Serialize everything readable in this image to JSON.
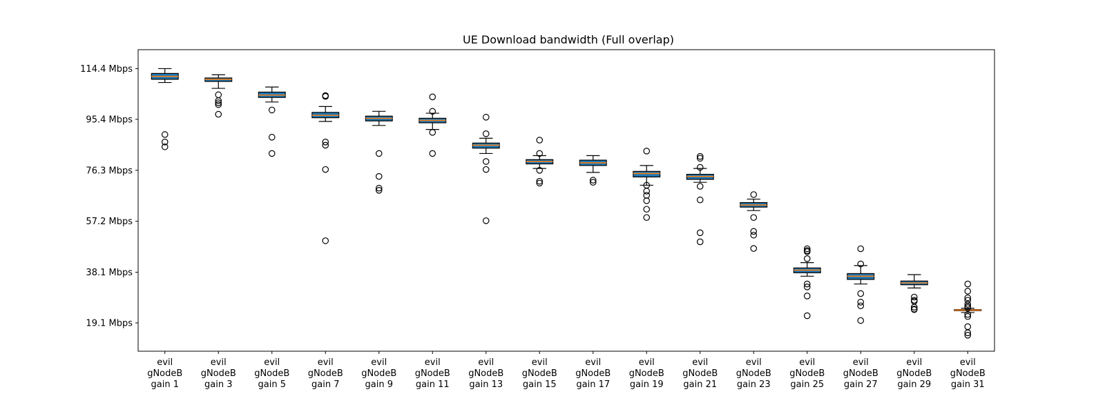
{
  "chart_data": {
    "type": "box",
    "title": "UE Download bandwidth (Full overlap)",
    "xlabel": "",
    "ylabel": "",
    "ylim": [
      8.5,
      121.5
    ],
    "yticks": [
      19.1,
      38.1,
      57.2,
      76.3,
      95.4,
      114.4
    ],
    "ytick_labels": [
      "19.1 Mbps",
      "38.1 Mbps",
      "57.2 Mbps",
      "76.3 Mbps",
      "95.4 Mbps",
      "114.4 Mbps"
    ],
    "grid": false,
    "box_color": "#1f77b4",
    "median_color": "#ff7f0e",
    "categories": [
      [
        "evil",
        "gNodeB",
        "gain 1"
      ],
      [
        "evil",
        "gNodeB",
        "gain 3"
      ],
      [
        "evil",
        "gNodeB",
        "gain 5"
      ],
      [
        "evil",
        "gNodeB",
        "gain 7"
      ],
      [
        "evil",
        "gNodeB",
        "gain 9"
      ],
      [
        "evil",
        "gNodeB",
        "gain 11"
      ],
      [
        "evil",
        "gNodeB",
        "gain 13"
      ],
      [
        "evil",
        "gNodeB",
        "gain 15"
      ],
      [
        "evil",
        "gNodeB",
        "gain 17"
      ],
      [
        "evil",
        "gNodeB",
        "gain 19"
      ],
      [
        "evil",
        "gNodeB",
        "gain 21"
      ],
      [
        "evil",
        "gNodeB",
        "gain 23"
      ],
      [
        "evil",
        "gNodeB",
        "gain 25"
      ],
      [
        "evil",
        "gNodeB",
        "gain 27"
      ],
      [
        "evil",
        "gNodeB",
        "gain 29"
      ],
      [
        "evil",
        "gNodeB",
        "gain 31"
      ]
    ],
    "boxes": [
      {
        "whislo": 109.2,
        "q1": 110.4,
        "med": 111.5,
        "q3": 112.6,
        "whishi": 114.4,
        "fliers": [
          89.7,
          86.9,
          85.1
        ]
      },
      {
        "whislo": 107.0,
        "q1": 109.6,
        "med": 110.4,
        "q3": 110.9,
        "whishi": 112.1,
        "fliers": [
          104.6,
          102.4,
          101.6,
          100.9,
          97.3
        ]
      },
      {
        "whislo": 101.9,
        "q1": 103.6,
        "med": 104.5,
        "q3": 105.6,
        "whishi": 107.5,
        "fliers": [
          98.9,
          88.7,
          82.6
        ]
      },
      {
        "whislo": 94.6,
        "q1": 96.0,
        "med": 96.9,
        "q3": 98.0,
        "whishi": 100.2,
        "fliers": [
          104.3,
          104.0,
          86.9,
          85.7,
          76.6,
          49.9
        ]
      },
      {
        "whislo": 93.1,
        "q1": 94.8,
        "med": 95.8,
        "q3": 96.6,
        "whishi": 98.4,
        "fliers": [
          82.6,
          74.0,
          69.6,
          68.8
        ]
      },
      {
        "whislo": 91.6,
        "q1": 94.1,
        "med": 95.0,
        "q3": 95.8,
        "whishi": 97.7,
        "fliers": [
          103.8,
          98.4,
          90.5,
          82.6
        ]
      },
      {
        "whislo": 82.6,
        "q1": 84.6,
        "med": 85.7,
        "q3": 86.5,
        "whishi": 88.3,
        "fliers": [
          96.2,
          90.0,
          79.6,
          76.6,
          57.4
        ]
      },
      {
        "whislo": 77.0,
        "q1": 78.7,
        "med": 79.6,
        "q3": 80.3,
        "whishi": 81.8,
        "fliers": [
          87.6,
          82.6,
          76.3,
          72.2,
          71.5
        ]
      },
      {
        "whislo": 75.5,
        "q1": 78.1,
        "med": 79.1,
        "q3": 80.1,
        "whishi": 81.8,
        "fliers": [
          72.6,
          71.8
        ]
      },
      {
        "whislo": 70.7,
        "q1": 73.8,
        "med": 75.1,
        "q3": 75.9,
        "whishi": 78.1,
        "fliers": [
          83.5,
          70.7,
          68.5,
          66.9,
          64.9,
          61.7,
          58.6
        ]
      },
      {
        "whislo": 71.8,
        "q1": 72.9,
        "med": 74.0,
        "q3": 74.8,
        "whishi": 77.0,
        "fliers": [
          81.5,
          80.8,
          77.4,
          70.3,
          65.2,
          52.9,
          49.5
        ]
      },
      {
        "whislo": 61.2,
        "q1": 62.5,
        "med": 63.3,
        "q3": 64.2,
        "whishi": 65.5,
        "fliers": [
          67.2,
          58.6,
          53.4,
          52.0,
          47.0
        ]
      },
      {
        "whislo": 36.6,
        "q1": 37.9,
        "med": 38.9,
        "q3": 39.7,
        "whishi": 41.7,
        "fliers": [
          46.9,
          46.2,
          45.8,
          43.2,
          33.7,
          32.6,
          29.2,
          21.8
        ]
      },
      {
        "whislo": 33.7,
        "q1": 35.4,
        "med": 36.6,
        "q3": 37.6,
        "whishi": 40.6,
        "fliers": [
          46.9,
          41.2,
          30.1,
          26.9,
          25.5,
          20.0
        ]
      },
      {
        "whislo": 32.2,
        "q1": 33.4,
        "med": 34.1,
        "q3": 34.8,
        "whishi": 37.2,
        "fliers": [
          28.8,
          27.6,
          27.2,
          25.0,
          24.3,
          24.1
        ]
      },
      {
        "whislo": 23.0,
        "q1": 23.7,
        "med": 23.9,
        "q3": 24.1,
        "whishi": 24.6,
        "fliers": [
          33.7,
          31.0,
          28.5,
          27.6,
          26.1,
          25.3,
          24.8,
          22.3,
          21.5,
          17.7,
          15.4,
          14.5
        ]
      }
    ]
  }
}
